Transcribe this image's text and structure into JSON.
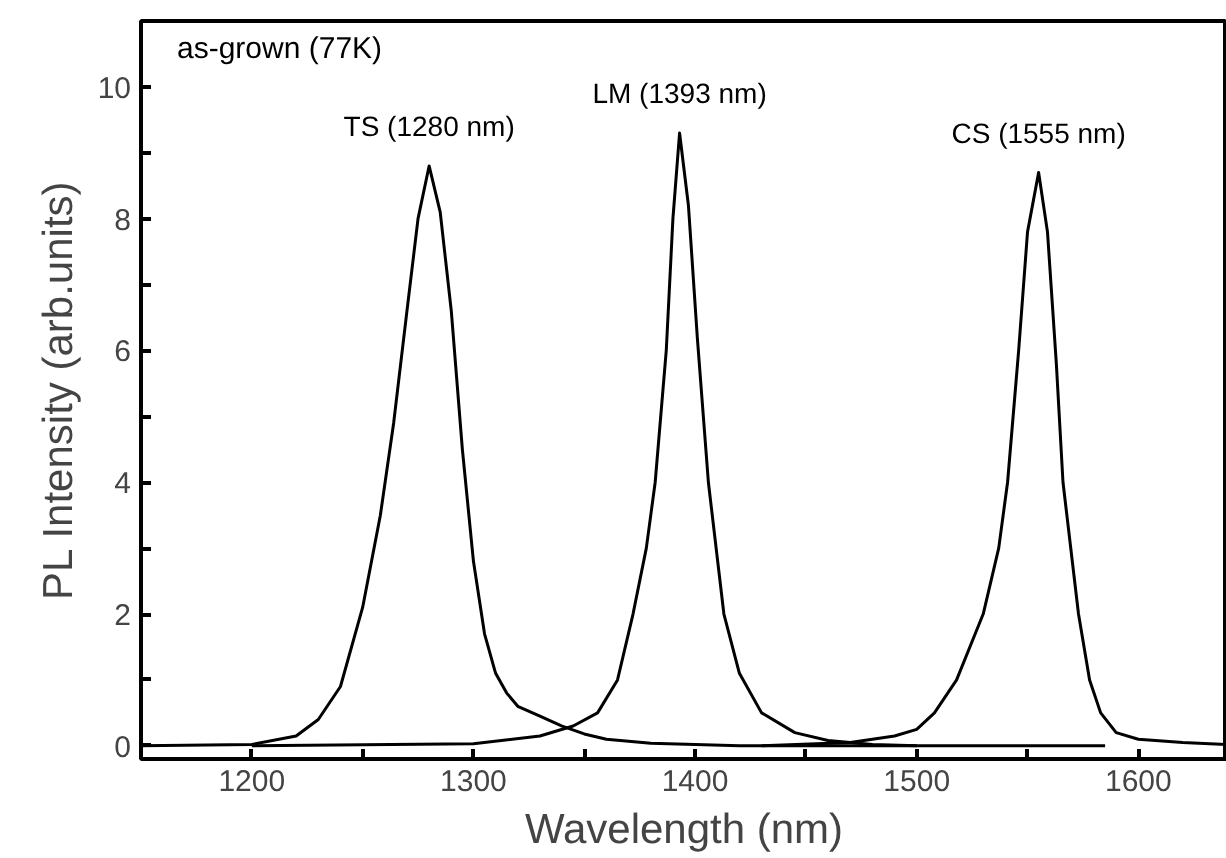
{
  "chart_data": {
    "type": "line",
    "xlabel": "Wavelength (nm)",
    "ylabel": "PL Intensity (arb.units)",
    "xlim": [
      1150,
      1640
    ],
    "ylim": [
      -0.2,
      11
    ],
    "xticks": [
      {
        "value": 1150,
        "label": null
      },
      1200,
      {
        "value": 1250,
        "label": null
      },
      1300,
      {
        "value": 1350,
        "label": null
      },
      1400,
      {
        "value": 1450,
        "label": null
      },
      1500,
      {
        "value": 1550,
        "label": null
      },
      1600
    ],
    "yticks": [
      0,
      {
        "value": 1,
        "label": null
      },
      2,
      {
        "value": 3,
        "label": null
      },
      4,
      {
        "value": 5,
        "label": null
      },
      6,
      {
        "value": 7,
        "label": null
      },
      8,
      {
        "value": 9,
        "label": null
      },
      10
    ],
    "grid": false,
    "marker": "none",
    "line_style": "solid",
    "annotations": [
      "as-grown (77K)",
      "TS (1280 nm)",
      "LM (1393 nm)",
      "CS (1555 nm)"
    ],
    "series": [
      {
        "color": "#000000",
        "x": [
          1150,
          1200,
          1220,
          1230,
          1240,
          1250,
          1258,
          1264,
          1270,
          1275,
          1280,
          1285,
          1290,
          1295,
          1300,
          1305,
          1310,
          1315,
          1320,
          1330,
          1340,
          1350,
          1360,
          1380,
          1400,
          1420,
          1585
        ],
        "values": [
          0,
          0.02,
          0.15,
          0.4,
          0.9,
          2.1,
          3.5,
          4.9,
          6.6,
          8.0,
          8.8,
          8.1,
          6.6,
          4.5,
          2.8,
          1.7,
          1.1,
          0.8,
          0.6,
          0.45,
          0.3,
          0.18,
          0.1,
          0.04,
          0.02,
          0,
          0
        ]
      },
      {
        "color": "#000000",
        "x": [
          1200,
          1300,
          1330,
          1345,
          1356,
          1365,
          1372,
          1378,
          1382,
          1387,
          1390,
          1393,
          1397,
          1401,
          1406,
          1413,
          1420,
          1430,
          1445,
          1460,
          1480,
          1500
        ],
        "values": [
          0,
          0.03,
          0.15,
          0.3,
          0.5,
          1.0,
          2.0,
          3.0,
          4.0,
          6.0,
          8.0,
          9.3,
          8.2,
          6.2,
          4.0,
          2.0,
          1.1,
          0.5,
          0.2,
          0.08,
          0.02,
          0
        ]
      },
      {
        "color": "#000000",
        "x": [
          1430,
          1470,
          1490,
          1500,
          1508,
          1518,
          1530,
          1537,
          1541,
          1546,
          1550,
          1555,
          1559,
          1563,
          1566,
          1573,
          1578,
          1583,
          1590,
          1600,
          1620,
          1640
        ],
        "values": [
          0,
          0.05,
          0.15,
          0.25,
          0.5,
          1.0,
          2.0,
          3.0,
          4.0,
          6.0,
          7.8,
          8.7,
          7.8,
          5.8,
          4.0,
          2.0,
          1.0,
          0.5,
          0.2,
          0.1,
          0.05,
          0.02
        ]
      }
    ]
  }
}
